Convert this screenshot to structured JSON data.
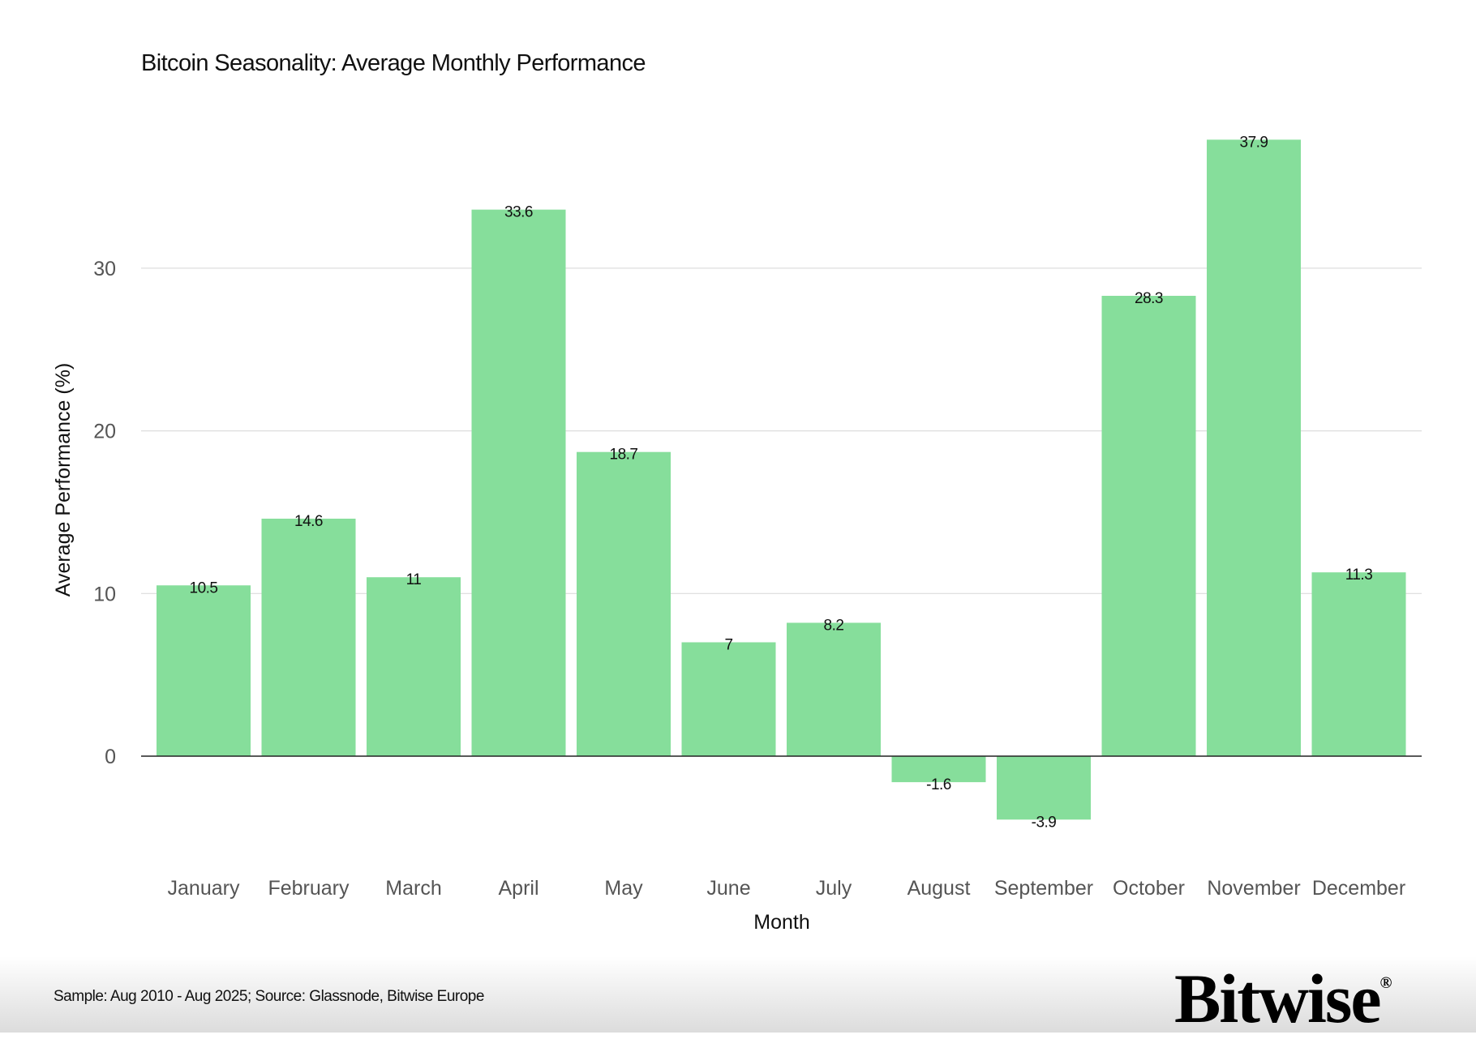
{
  "chart_data": {
    "type": "bar",
    "title": "Bitcoin Seasonality: Average Monthly Performance",
    "xlabel": "Month",
    "ylabel": "Average Performance (%)",
    "categories": [
      "January",
      "February",
      "March",
      "April",
      "May",
      "June",
      "July",
      "August",
      "September",
      "October",
      "November",
      "December"
    ],
    "values": [
      10.5,
      14.6,
      11,
      33.6,
      18.7,
      7,
      8.2,
      -1.6,
      -3.9,
      28.3,
      37.9,
      11.3
    ],
    "yticks": [
      0,
      10,
      20,
      30
    ],
    "ylim": [
      -6.9,
      44
    ],
    "grid": true,
    "bar_color": "#86DE9B"
  },
  "footer": {
    "source": "Sample: Aug 2010 - Aug 2025; Source: Glassnode, Bitwise Europe",
    "logo": "Bitwise",
    "logo_mark": "®"
  }
}
